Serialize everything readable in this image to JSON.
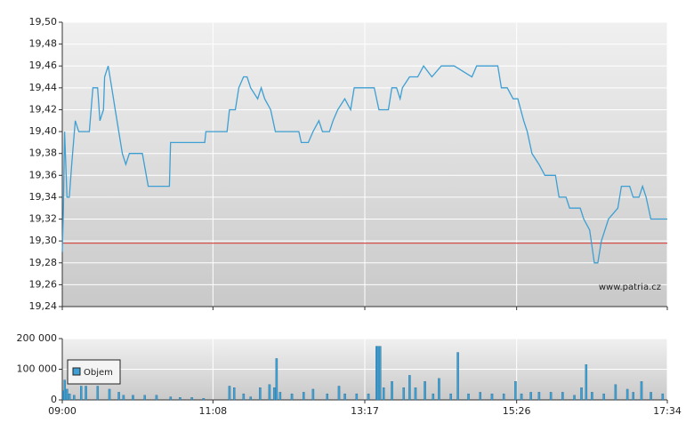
{
  "chart_data": [
    {
      "type": "line",
      "color": "#3d9fd3",
      "xlim": [
        "09:00",
        "17:34"
      ],
      "ylim": [
        19.24,
        19.5
      ],
      "yticks": [
        {
          "value": 19.24,
          "label": "19,24"
        },
        {
          "value": 19.26,
          "label": "19,26"
        },
        {
          "value": 19.28,
          "label": "19,28"
        },
        {
          "value": 19.3,
          "label": "19,30"
        },
        {
          "value": 19.32,
          "label": "19,32"
        },
        {
          "value": 19.34,
          "label": "19,34"
        },
        {
          "value": 19.36,
          "label": "19,36"
        },
        {
          "value": 19.38,
          "label": "19,38"
        },
        {
          "value": 19.4,
          "label": "19,40"
        },
        {
          "value": 19.42,
          "label": "19,42"
        },
        {
          "value": 19.44,
          "label": "19,44"
        },
        {
          "value": 19.46,
          "label": "19,46"
        },
        {
          "value": 19.48,
          "label": "19,48"
        },
        {
          "value": 19.5,
          "label": "19,50"
        }
      ],
      "reference": 19.298,
      "reference_color": "#d9534f",
      "watermark": "www.patria.cz",
      "x": [
        "09:00",
        "09:01",
        "09:02",
        "09:04",
        "09:06",
        "09:08",
        "09:11",
        "09:14",
        "09:17",
        "09:23",
        "09:26",
        "09:30",
        "09:32",
        "09:35",
        "09:36",
        "09:39",
        "09:42",
        "09:45",
        "09:48",
        "09:51",
        "09:54",
        "09:57",
        "10:00",
        "10:08",
        "10:13",
        "10:23",
        "10:31",
        "10:32",
        "10:35",
        "11:01",
        "11:02",
        "11:20",
        "11:22",
        "11:27",
        "11:30",
        "11:34",
        "11:37",
        "11:40",
        "11:46",
        "11:49",
        "11:52",
        "11:57",
        "12:01",
        "12:21",
        "12:23",
        "12:29",
        "12:33",
        "12:38",
        "12:41",
        "12:47",
        "12:50",
        "12:54",
        "13:00",
        "13:05",
        "13:08",
        "13:25",
        "13:29",
        "13:37",
        "13:40",
        "13:44",
        "13:47",
        "13:49",
        "13:55",
        "14:02",
        "14:07",
        "14:14",
        "14:22",
        "14:33",
        "14:48",
        "14:52",
        "15:10",
        "15:13",
        "15:18",
        "15:23",
        "15:27",
        "15:32",
        "15:35",
        "15:39",
        "15:45",
        "15:50",
        "15:59",
        "16:02",
        "16:08",
        "16:11",
        "16:20",
        "16:23",
        "16:28",
        "16:32",
        "16:35",
        "16:38",
        "16:41",
        "16:44",
        "16:52",
        "16:55",
        "17:02",
        "17:05",
        "17:10",
        "17:13",
        "17:16",
        "17:20",
        "17:26",
        "17:34"
      ],
      "values": [
        19.29,
        19.33,
        19.4,
        19.34,
        19.34,
        19.37,
        19.41,
        19.4,
        19.4,
        19.4,
        19.44,
        19.44,
        19.41,
        19.42,
        19.45,
        19.46,
        19.44,
        19.42,
        19.4,
        19.38,
        19.37,
        19.38,
        19.38,
        19.38,
        19.35,
        19.35,
        19.35,
        19.39,
        19.39,
        19.39,
        19.4,
        19.4,
        19.42,
        19.42,
        19.44,
        19.45,
        19.45,
        19.44,
        19.43,
        19.44,
        19.43,
        19.42,
        19.4,
        19.4,
        19.39,
        19.39,
        19.4,
        19.41,
        19.4,
        19.4,
        19.41,
        19.42,
        19.43,
        19.42,
        19.44,
        19.44,
        19.42,
        19.42,
        19.44,
        19.44,
        19.43,
        19.44,
        19.45,
        19.45,
        19.46,
        19.45,
        19.46,
        19.46,
        19.45,
        19.46,
        19.46,
        19.44,
        19.44,
        19.43,
        19.43,
        19.41,
        19.4,
        19.38,
        19.37,
        19.36,
        19.36,
        19.34,
        19.34,
        19.33,
        19.33,
        19.32,
        19.31,
        19.28,
        19.28,
        19.3,
        19.31,
        19.32,
        19.33,
        19.35,
        19.35,
        19.34,
        19.34,
        19.35,
        19.34,
        19.32,
        19.32,
        19.32
      ]
    },
    {
      "type": "bar",
      "xlim": [
        "09:00",
        "17:34"
      ],
      "xticks": [
        "09:00",
        "11:08",
        "13:17",
        "15:26",
        "17:34"
      ],
      "ylim": [
        0,
        200000
      ],
      "yticks": [
        0,
        {
          "value": 100000,
          "label": "100 000"
        },
        {
          "value": 200000,
          "label": "200 000"
        }
      ],
      "x": [
        "09:01",
        "09:02",
        "09:04",
        "09:06",
        "09:10",
        "09:16",
        "09:20",
        "09:30",
        "09:40",
        "09:48",
        "09:52",
        "10:00",
        "10:10",
        "10:20",
        "10:32",
        "10:40",
        "10:50",
        "11:00",
        "11:22",
        "11:26",
        "11:34",
        "11:40",
        "11:48",
        "11:56",
        "12:00",
        "12:02",
        "12:05",
        "12:15",
        "12:25",
        "12:33",
        "12:45",
        "12:55",
        "13:00",
        "13:10",
        "13:20",
        "13:27",
        "13:28",
        "13:30",
        "13:33",
        "13:40",
        "13:50",
        "13:55",
        "14:00",
        "14:08",
        "14:15",
        "14:20",
        "14:30",
        "14:36",
        "14:45",
        "14:55",
        "15:05",
        "15:15",
        "15:25",
        "15:30",
        "15:38",
        "15:45",
        "15:55",
        "16:05",
        "16:15",
        "16:21",
        "16:25",
        "16:30",
        "16:40",
        "16:50",
        "17:00",
        "17:05",
        "17:12",
        "17:20",
        "17:30"
      ],
      "series": [
        {
          "name": "Objem",
          "color": "#3d9fd3",
          "values": [
            30000,
            65000,
            35000,
            20000,
            15000,
            45000,
            45000,
            45000,
            35000,
            25000,
            15000,
            15000,
            15000,
            15000,
            10000,
            8000,
            8000,
            5000,
            45000,
            40000,
            20000,
            10000,
            40000,
            50000,
            40000,
            135000,
            25000,
            20000,
            25000,
            35000,
            20000,
            45000,
            20000,
            20000,
            20000,
            175000,
            175000,
            175000,
            40000,
            60000,
            40000,
            80000,
            40000,
            60000,
            20000,
            70000,
            20000,
            155000,
            20000,
            25000,
            20000,
            20000,
            60000,
            20000,
            25000,
            25000,
            25000,
            25000,
            15000,
            40000,
            115000,
            25000,
            20000,
            50000,
            35000,
            25000,
            60000,
            25000,
            20000
          ]
        }
      ]
    }
  ]
}
